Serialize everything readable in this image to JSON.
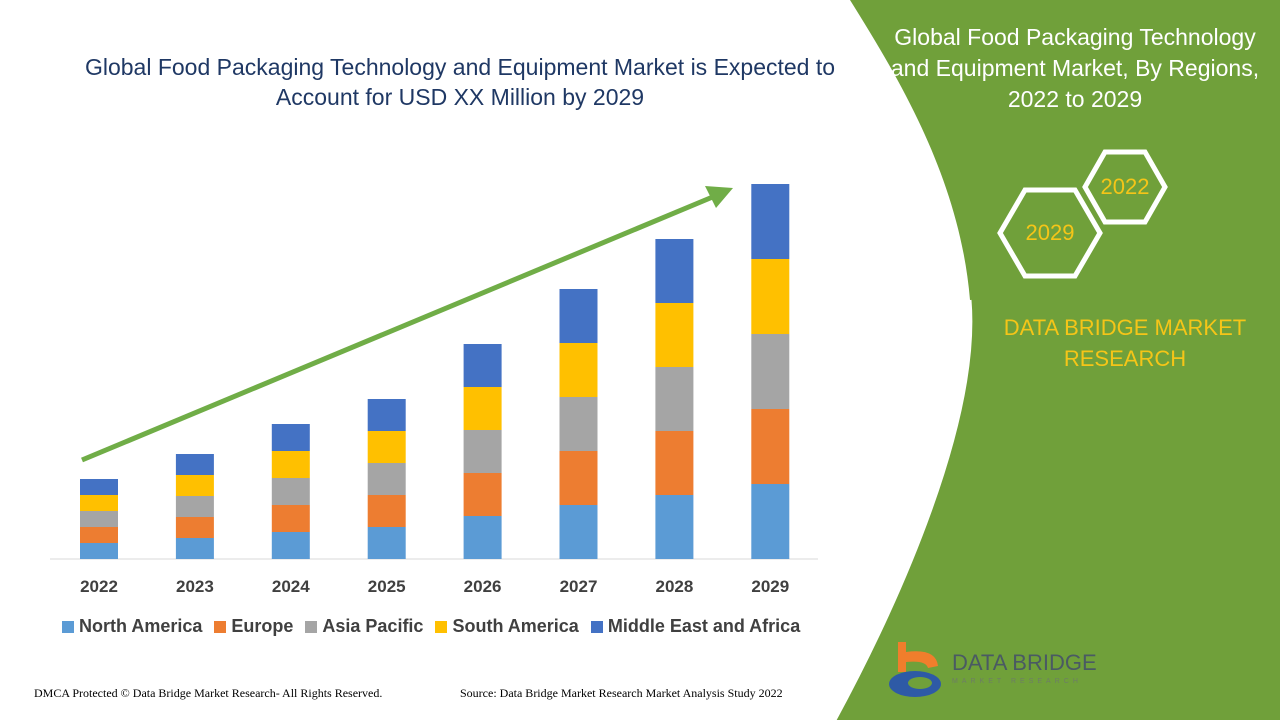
{
  "chart_data": {
    "type": "bar",
    "stacked": true,
    "title": "Global Food Packaging Technology and Equipment Market is Expected to Account for USD XX Million by 2029",
    "categories": [
      "2022",
      "2023",
      "2024",
      "2025",
      "2026",
      "2027",
      "2028",
      "2029"
    ],
    "series": [
      {
        "name": "North America",
        "color": "#5b9bd5",
        "values": [
          16,
          21,
          27,
          32,
          43,
          54,
          64,
          75
        ]
      },
      {
        "name": "Europe",
        "color": "#ed7d31",
        "values": [
          16,
          21,
          27,
          32,
          43,
          54,
          64,
          75
        ]
      },
      {
        "name": "Asia Pacific",
        "color": "#a5a5a5",
        "values": [
          16,
          21,
          27,
          32,
          43,
          54,
          64,
          75
        ]
      },
      {
        "name": "South America",
        "color": "#ffc000",
        "values": [
          16,
          21,
          27,
          32,
          43,
          54,
          64,
          75
        ]
      },
      {
        "name": "Middle East and Africa",
        "color": "#4472c4",
        "values": [
          16,
          21,
          27,
          32,
          43,
          54,
          64,
          75
        ]
      }
    ],
    "xlabel": "",
    "ylabel": "",
    "ylim": [
      0,
      375
    ],
    "grid": false,
    "legend": "bottom"
  },
  "side": {
    "title": "Global Food Packaging Technology and Equipment Market, By Regions, 2022 to 2029",
    "hex_a": "2022",
    "hex_b": "2029",
    "brand": "DATA BRIDGE MARKET RESEARCH"
  },
  "logo": {
    "name": "DATA BRIDGE",
    "sub": "MARKET RESEARCH"
  },
  "footer": {
    "left": "DMCA Protected © Data Bridge Market Research- All Rights Reserved.",
    "right": "Source: Data Bridge Market Research Market Analysis Study 2022"
  },
  "colors": {
    "panel": "#70a03a",
    "arrow": "#70ad47",
    "title": "#1f3864"
  }
}
